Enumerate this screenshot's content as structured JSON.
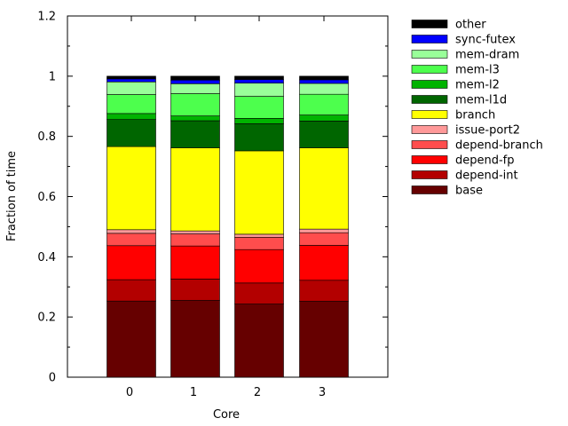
{
  "chart_data": {
    "type": "bar",
    "stacked": true,
    "title": "",
    "xlabel": "Core",
    "ylabel": "Fraction of time",
    "categories": [
      "0",
      "1",
      "2",
      "3"
    ],
    "ylim": [
      0,
      1.2
    ],
    "yticks": [
      "0",
      "0.2",
      "0.4",
      "0.6",
      "0.8",
      "1",
      "1.2"
    ],
    "legend_position": "right-outside-top",
    "series": [
      {
        "name": "base",
        "color": "#660000",
        "values": [
          0.253,
          0.255,
          0.243,
          0.252
        ]
      },
      {
        "name": "depend-int",
        "color": "#b30000",
        "values": [
          0.071,
          0.071,
          0.07,
          0.07
        ]
      },
      {
        "name": "depend-fp",
        "color": "#ff0000",
        "values": [
          0.113,
          0.11,
          0.111,
          0.116
        ]
      },
      {
        "name": "depend-branch",
        "color": "#ff4d4d",
        "values": [
          0.041,
          0.04,
          0.041,
          0.042
        ]
      },
      {
        "name": "issue-port2",
        "color": "#ff9999",
        "values": [
          0.012,
          0.01,
          0.01,
          0.012
        ]
      },
      {
        "name": "branch",
        "color": "#ffff00",
        "values": [
          0.276,
          0.276,
          0.277,
          0.27
        ]
      },
      {
        "name": "mem-l1d",
        "color": "#006600",
        "values": [
          0.09,
          0.09,
          0.09,
          0.089
        ]
      },
      {
        "name": "mem-l2",
        "color": "#00b300",
        "values": [
          0.02,
          0.016,
          0.018,
          0.02
        ]
      },
      {
        "name": "mem-l3",
        "color": "#4dff4d",
        "values": [
          0.063,
          0.074,
          0.073,
          0.069
        ]
      },
      {
        "name": "mem-dram",
        "color": "#99ff99",
        "values": [
          0.042,
          0.033,
          0.044,
          0.036
        ]
      },
      {
        "name": "sync-futex",
        "color": "#0000ff",
        "values": [
          0.01,
          0.012,
          0.012,
          0.012
        ]
      },
      {
        "name": "other",
        "color": "#000000",
        "values": [
          0.009,
          0.013,
          0.011,
          0.012
        ]
      }
    ]
  }
}
